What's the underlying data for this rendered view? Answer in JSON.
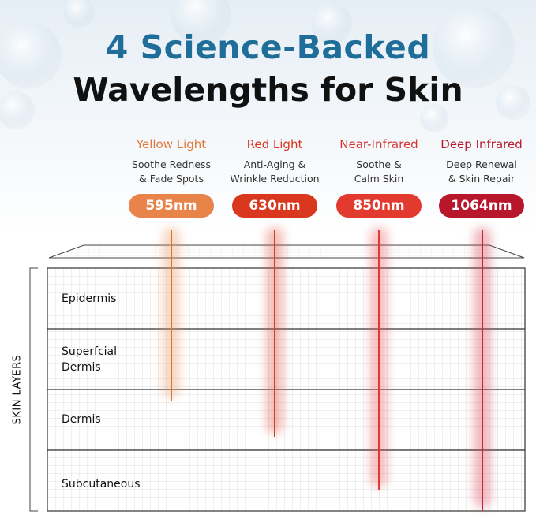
{
  "headline": {
    "line1": "4 Science-Backed",
    "line2": "Wavelengths for Skin"
  },
  "axis_title": "SKIN LAYERS",
  "wavelengths": [
    {
      "name": "Yellow Light",
      "desc": "Soothe Redness\n& Fade Spots",
      "value": "595nm",
      "name_color": "#e07a3a",
      "pill_color": "#e8844a",
      "beam_color": "#d4753a",
      "depth_layer": 2
    },
    {
      "name": "Red Light",
      "desc": "Anti-Aging &\nWrinkle Reduction",
      "value": "630nm",
      "name_color": "#d8351f",
      "pill_color": "#d9381e",
      "beam_color": "#c8401f",
      "depth_layer": 3
    },
    {
      "name": "Near-Infrared",
      "desc": "Soothe &\nCalm Skin",
      "value": "850nm",
      "name_color": "#d83434",
      "pill_color": "#e23a2f",
      "beam_color": "#dd3b33",
      "depth_layer": 4
    },
    {
      "name": "Deep Infrared",
      "desc": "Deep Renewal\n& Skin Repair",
      "value": "1064nm",
      "name_color": "#b9182a",
      "pill_color": "#b8162a",
      "beam_color": "#c2263a",
      "depth_layer": 4
    }
  ],
  "layers": [
    {
      "label": "Epidermis"
    },
    {
      "label": "Superfcial\nDermis"
    },
    {
      "label": "Dermis"
    },
    {
      "label": "Subcutaneous"
    }
  ]
}
